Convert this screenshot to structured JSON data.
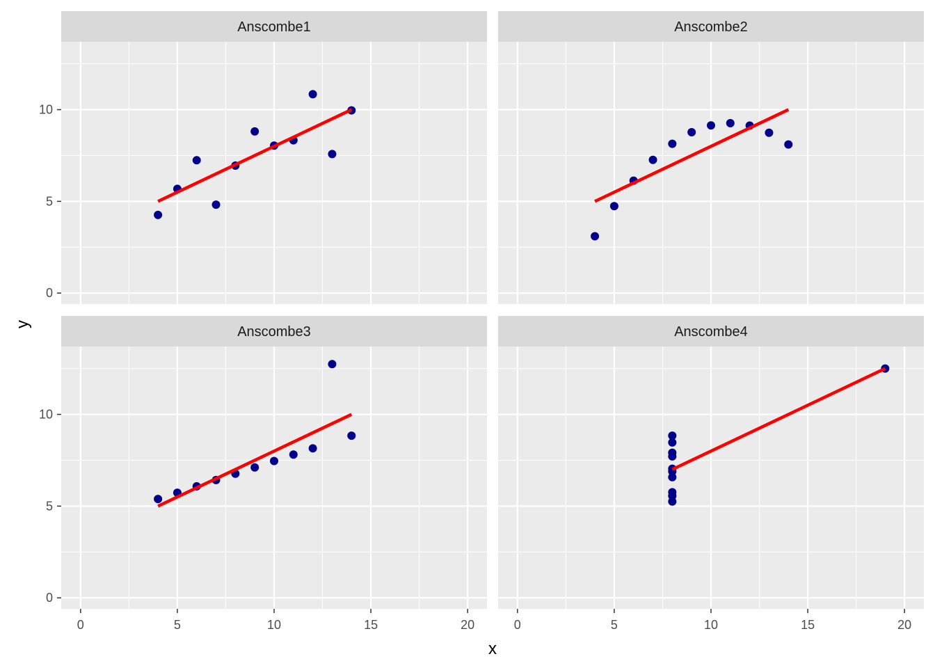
{
  "chart_data": {
    "type": "scatter",
    "title": "",
    "xlabel": "x",
    "ylabel": "y",
    "xlim": [
      -1,
      21
    ],
    "ylim": [
      -0.6,
      13.7
    ],
    "x_ticks": [
      0,
      5,
      10,
      15,
      20
    ],
    "y_ticks": [
      0,
      5,
      10
    ],
    "grid": true,
    "colors": {
      "points": "#00008b",
      "fit_line": "#ff0000",
      "panel": "#ebebeb",
      "strip": "#d9d9d9",
      "grid": "#ffffff"
    },
    "panels": [
      {
        "name": "Anscombe1",
        "x": [
          4,
          5,
          6,
          7,
          8,
          9,
          10,
          11,
          12,
          13,
          14
        ],
        "y": [
          4.26,
          5.68,
          7.24,
          4.82,
          6.95,
          8.81,
          8.04,
          8.33,
          10.84,
          7.58,
          9.96
        ],
        "fit": {
          "x": [
            4,
            14
          ],
          "y": [
            5.0,
            10.0
          ]
        }
      },
      {
        "name": "Anscombe2",
        "x": [
          4,
          5,
          6,
          7,
          8,
          9,
          10,
          11,
          12,
          13,
          14
        ],
        "y": [
          3.1,
          4.74,
          6.13,
          7.26,
          8.14,
          8.77,
          9.14,
          9.26,
          9.13,
          8.74,
          8.1
        ],
        "fit": {
          "x": [
            4,
            14
          ],
          "y": [
            5.0,
            10.0
          ]
        }
      },
      {
        "name": "Anscombe3",
        "x": [
          4,
          5,
          6,
          7,
          8,
          9,
          10,
          11,
          12,
          13,
          14
        ],
        "y": [
          5.39,
          5.73,
          6.08,
          6.42,
          6.77,
          7.11,
          7.46,
          7.81,
          8.15,
          12.74,
          8.84
        ],
        "fit": {
          "x": [
            4,
            14
          ],
          "y": [
            5.0,
            10.0
          ]
        }
      },
      {
        "name": "Anscombe4",
        "x": [
          8,
          8,
          8,
          8,
          8,
          8,
          8,
          8,
          8,
          8,
          19
        ],
        "y": [
          6.58,
          5.76,
          7.71,
          8.84,
          8.47,
          7.04,
          5.25,
          5.56,
          7.91,
          6.89,
          12.5
        ],
        "fit": {
          "x": [
            8,
            19
          ],
          "y": [
            7.0,
            12.5
          ]
        }
      }
    ]
  }
}
